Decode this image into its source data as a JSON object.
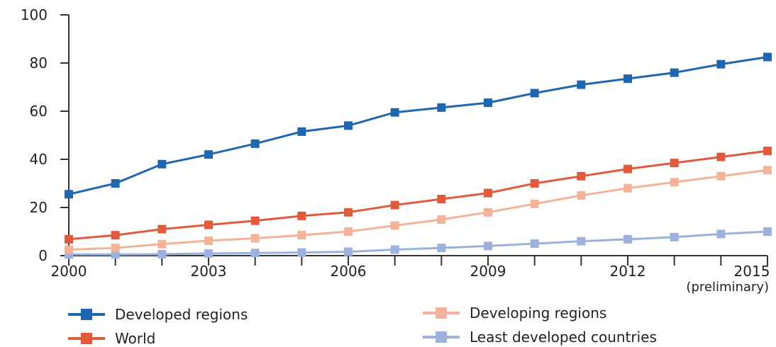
{
  "chart_data": {
    "type": "line",
    "x": [
      2000,
      2001,
      2002,
      2003,
      2004,
      2005,
      2006,
      2007,
      2008,
      2009,
      2010,
      2011,
      2012,
      2013,
      2014,
      2015
    ],
    "x_ticks": [
      "2000",
      "2003",
      "2006",
      "2009",
      "2012",
      "2015"
    ],
    "x_tick_values": [
      2000,
      2003,
      2006,
      2009,
      2012,
      2015
    ],
    "x_note": "(preliminary)",
    "y_ticks": [
      "0",
      "20",
      "40",
      "60",
      "80",
      "100"
    ],
    "ylim": [
      0,
      100
    ],
    "xlim": [
      2000,
      2015
    ],
    "grid": false,
    "series": [
      {
        "name": "Developed regions",
        "color": "#1f66b1",
        "values": [
          25.5,
          30,
          38,
          42,
          46.5,
          51.5,
          54,
          59.5,
          61.5,
          63.5,
          67.5,
          71,
          73.5,
          76,
          79.5,
          82.5
        ]
      },
      {
        "name": "Developing regions",
        "color": "#f3b39b",
        "values": [
          2.5,
          3.2,
          4.8,
          6.2,
          7.2,
          8.5,
          10,
          12.5,
          15,
          18,
          21.5,
          25,
          28,
          30.5,
          33,
          35.5
        ]
      },
      {
        "name": "World",
        "color": "#e05a3e",
        "values": [
          6.8,
          8.5,
          11,
          12.8,
          14.5,
          16.5,
          18,
          21,
          23.5,
          26,
          30,
          33,
          36,
          38.5,
          41,
          43.5
        ]
      },
      {
        "name": "Least developed countries",
        "color": "#9db1dd",
        "values": [
          0.5,
          0.5,
          0.6,
          0.9,
          1.1,
          1.3,
          1.6,
          2.5,
          3.2,
          4,
          5,
          6,
          6.8,
          7.7,
          9,
          10
        ]
      }
    ]
  },
  "legend": {
    "developed": "Developed regions",
    "developing": "Developing regions",
    "world": "World",
    "least": "Least developed countries"
  }
}
